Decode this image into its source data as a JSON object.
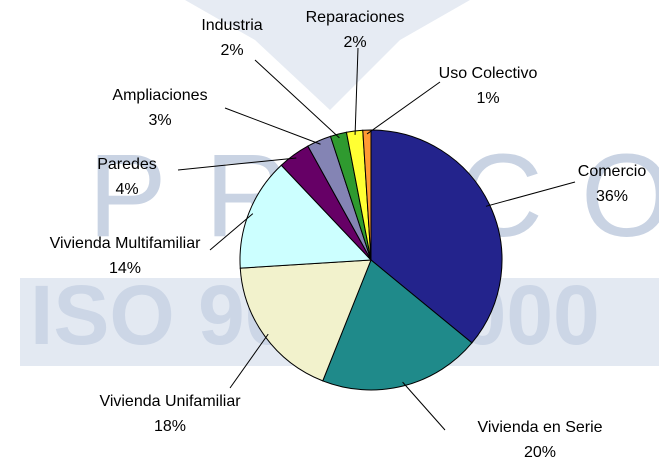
{
  "watermark": {
    "top": "PROCOMER",
    "band": "ISO 9001-2000"
  },
  "chart_data": {
    "type": "pie",
    "categories": [
      "Comercio",
      "Vivienda en Serie",
      "Vivienda Unifamiliar",
      "Vivienda Multifamiliar",
      "Paredes",
      "Ampliaciones",
      "Industria",
      "Reparaciones",
      "Uso Colectivo"
    ],
    "values": [
      36,
      20,
      18,
      14,
      4,
      3,
      2,
      2,
      1
    ],
    "value_labels": [
      "36%",
      "20%",
      "18%",
      "14%",
      "4%",
      "3%",
      "2%",
      "2%",
      "1%"
    ],
    "colors": [
      "#23238c",
      "#1f8a8a",
      "#f2f2cc",
      "#ccffff",
      "#660066",
      "#8484b4",
      "#2f9a2f",
      "#ffff33",
      "#ff9a33"
    ]
  }
}
